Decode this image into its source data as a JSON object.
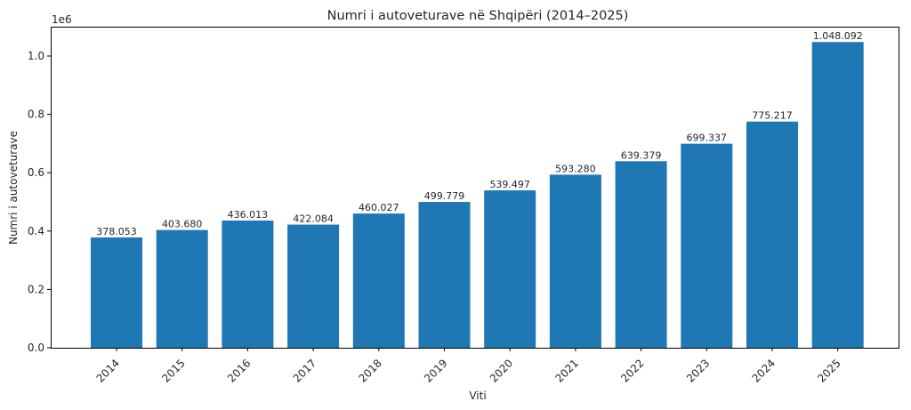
{
  "chart_data": {
    "type": "bar",
    "title": "Numri i autoveturave në Shqipëri (2014–2025)",
    "xlabel": "Viti",
    "ylabel": "Numri i autoveturave",
    "y_offset_label": "1e6",
    "ylim": [
      0,
      1100000
    ],
    "yticks": [
      0,
      200000,
      400000,
      600000,
      800000,
      1000000
    ],
    "ytick_labels": [
      "0.0",
      "0.2",
      "0.4",
      "0.6",
      "0.8",
      "1.0"
    ],
    "grid": false,
    "legend": null,
    "bar_color": "#1f77b4",
    "categories": [
      "2014",
      "2015",
      "2016",
      "2017",
      "2018",
      "2019",
      "2020",
      "2021",
      "2022",
      "2023",
      "2024",
      "2025"
    ],
    "values": [
      378053,
      403680,
      436013,
      422084,
      460027,
      499779,
      539497,
      593280,
      639379,
      699337,
      775217,
      1048092
    ],
    "data_labels": [
      "378.053",
      "403.680",
      "436.013",
      "422.084",
      "460.027",
      "499.779",
      "539.497",
      "593.280",
      "639.379",
      "699.337",
      "775.217",
      "1.048.092"
    ],
    "xtick_rotation": 45
  }
}
